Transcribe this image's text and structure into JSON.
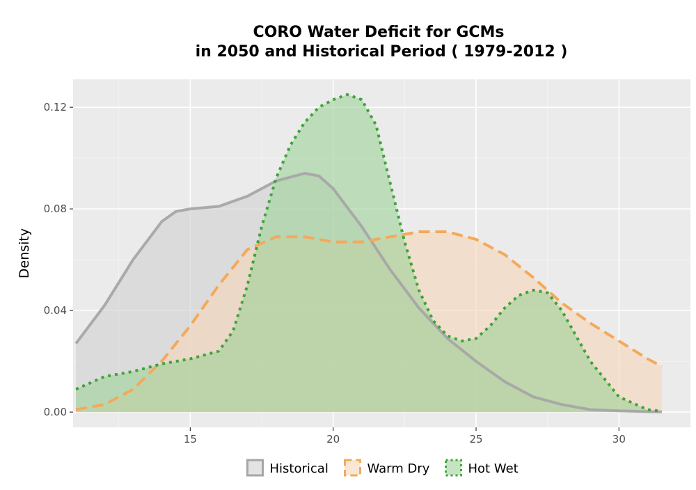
{
  "chart_data": {
    "type": "area",
    "title_line1": "CORO  Water Deficit for GCMs",
    "title_line2": "in 2050 and Historical Period ( 1979-2012 )",
    "xlabel": "",
    "ylabel": "Density",
    "xlim": [
      10.9,
      32.5
    ],
    "ylim": [
      -0.006,
      0.131
    ],
    "x_ticks": [
      15,
      20,
      25,
      30
    ],
    "x_tick_labels": [
      "15",
      "20",
      "25",
      "30"
    ],
    "y_ticks": [
      0.0,
      0.04,
      0.08,
      0.12
    ],
    "y_tick_labels": [
      "0.00",
      "0.04",
      "0.08",
      "0.12"
    ],
    "grid": true,
    "legend_position": "bottom",
    "series": [
      {
        "name": "Historical",
        "line_style": "solid",
        "line_color": "#a6a6a6",
        "fill_color": "#d0d0d0",
        "x": [
          11,
          12,
          13,
          14,
          14.5,
          15,
          16,
          17,
          18,
          19,
          19.5,
          20,
          21,
          22,
          23,
          24,
          25,
          26,
          27,
          28,
          29,
          30,
          31,
          31.5
        ],
        "y": [
          0.027,
          0.042,
          0.06,
          0.075,
          0.079,
          0.08,
          0.081,
          0.085,
          0.091,
          0.094,
          0.093,
          0.088,
          0.073,
          0.056,
          0.041,
          0.029,
          0.02,
          0.012,
          0.006,
          0.003,
          0.001,
          0.0005,
          0.0002,
          0.0001
        ]
      },
      {
        "name": "Warm Dry",
        "line_style": "dashed",
        "line_color": "#f4a95a",
        "fill_color": "#f6d5b8",
        "x": [
          11,
          12,
          13,
          14,
          15,
          16,
          17,
          18,
          19,
          20,
          21,
          22,
          23,
          24,
          25,
          26,
          27,
          28,
          29,
          30,
          31,
          31.5
        ],
        "y": [
          0.001,
          0.003,
          0.009,
          0.02,
          0.034,
          0.05,
          0.064,
          0.069,
          0.069,
          0.067,
          0.067,
          0.069,
          0.071,
          0.071,
          0.068,
          0.062,
          0.053,
          0.043,
          0.035,
          0.028,
          0.021,
          0.018
        ]
      },
      {
        "name": "Hot Wet",
        "line_style": "dotted",
        "line_color": "#3fa33a",
        "fill_color": "#9fd29a",
        "x": [
          11,
          12,
          13,
          14,
          15,
          16,
          16.5,
          17,
          17.5,
          18,
          18.5,
          19,
          19.5,
          20,
          20.5,
          21,
          21.5,
          22,
          22.5,
          23,
          23.5,
          24,
          24.5,
          25,
          25.5,
          26,
          26.5,
          27,
          27.5,
          28,
          28.5,
          29,
          30,
          31,
          31.5
        ],
        "y": [
          0.009,
          0.014,
          0.016,
          0.019,
          0.021,
          0.024,
          0.032,
          0.05,
          0.073,
          0.092,
          0.105,
          0.114,
          0.12,
          0.123,
          0.125,
          0.123,
          0.113,
          0.09,
          0.067,
          0.048,
          0.036,
          0.03,
          0.028,
          0.029,
          0.034,
          0.041,
          0.046,
          0.048,
          0.047,
          0.04,
          0.03,
          0.02,
          0.006,
          0.001,
          0.0003
        ]
      }
    ]
  }
}
